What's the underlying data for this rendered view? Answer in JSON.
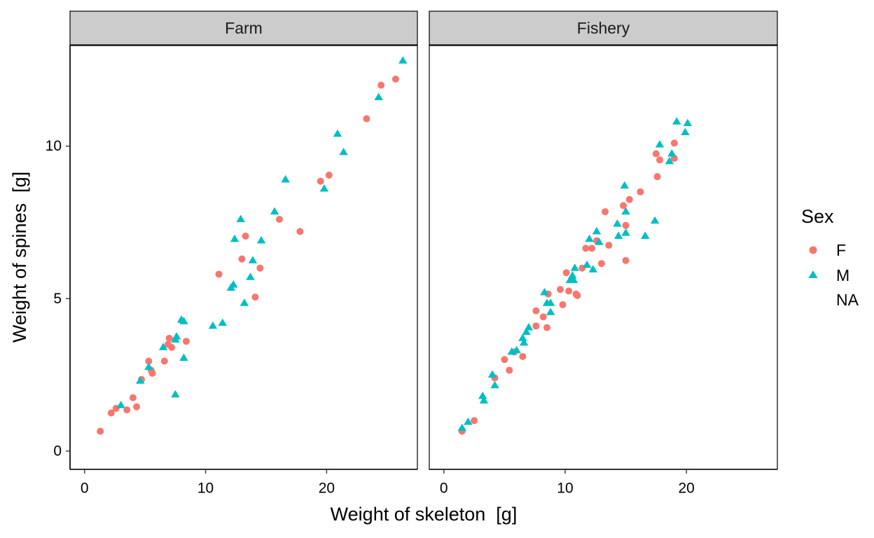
{
  "chart_data": {
    "type": "scatter",
    "facets": [
      "Farm",
      "Fishery"
    ],
    "xlabel": "Weight of skeleton  [g]",
    "ylabel": "Weight of spines  [g]",
    "xlim": [
      -1.2,
      27.5
    ],
    "ylim": [
      -0.6,
      13.3
    ],
    "xticks": [
      0,
      10,
      20
    ],
    "yticks": [
      0,
      5,
      10
    ],
    "legend": {
      "title": "Sex",
      "position": "right",
      "entries": [
        "F",
        "M",
        "NA"
      ]
    },
    "colors": {
      "F": "#F8766D",
      "M": "#00BFC4"
    },
    "series": [
      {
        "name": "F",
        "marker": "circle",
        "facet_points": {
          "Farm": [
            [
              1.3,
              0.65
            ],
            [
              2.2,
              1.25
            ],
            [
              2.6,
              1.4
            ],
            [
              3.5,
              1.35
            ],
            [
              4.0,
              1.75
            ],
            [
              4.3,
              1.45
            ],
            [
              4.7,
              2.35
            ],
            [
              5.3,
              2.95
            ],
            [
              5.5,
              2.65
            ],
            [
              5.6,
              2.55
            ],
            [
              6.6,
              2.95
            ],
            [
              6.9,
              3.5
            ],
            [
              7.0,
              3.7
            ],
            [
              7.2,
              3.4
            ],
            [
              8.4,
              3.6
            ],
            [
              11.1,
              5.8
            ],
            [
              13.0,
              6.3
            ],
            [
              13.3,
              7.05
            ],
            [
              14.1,
              5.05
            ],
            [
              14.5,
              6.0
            ],
            [
              16.1,
              7.6
            ],
            [
              17.8,
              7.2
            ],
            [
              19.5,
              8.85
            ],
            [
              20.2,
              9.05
            ],
            [
              23.3,
              10.9
            ],
            [
              24.5,
              12.0
            ],
            [
              25.7,
              12.2
            ]
          ],
          "Fishery": [
            [
              1.5,
              0.65
            ],
            [
              2.5,
              1.0
            ],
            [
              4.2,
              2.4
            ],
            [
              5.0,
              3.0
            ],
            [
              5.4,
              2.65
            ],
            [
              5.8,
              3.25
            ],
            [
              6.5,
              3.1
            ],
            [
              7.6,
              4.1
            ],
            [
              7.6,
              4.6
            ],
            [
              8.2,
              4.4
            ],
            [
              8.5,
              4.05
            ],
            [
              8.6,
              5.15
            ],
            [
              9.6,
              5.3
            ],
            [
              9.8,
              4.8
            ],
            [
              10.1,
              5.85
            ],
            [
              10.3,
              5.25
            ],
            [
              10.9,
              5.15
            ],
            [
              11.0,
              5.1
            ],
            [
              11.4,
              6.0
            ],
            [
              11.7,
              6.65
            ],
            [
              12.2,
              6.65
            ],
            [
              12.6,
              6.9
            ],
            [
              13.0,
              6.15
            ],
            [
              13.3,
              7.85
            ],
            [
              13.6,
              6.75
            ],
            [
              14.8,
              8.05
            ],
            [
              15.0,
              7.4
            ],
            [
              15.0,
              6.25
            ],
            [
              15.3,
              8.25
            ],
            [
              16.2,
              8.5
            ],
            [
              17.5,
              9.75
            ],
            [
              17.6,
              9.0
            ],
            [
              17.8,
              9.55
            ],
            [
              19.0,
              10.1
            ],
            [
              19.0,
              9.6
            ]
          ]
        }
      },
      {
        "name": "M",
        "marker": "triangle",
        "facet_points": {
          "Farm": [
            [
              3.0,
              1.5
            ],
            [
              4.6,
              2.3
            ],
            [
              5.3,
              2.75
            ],
            [
              6.5,
              3.4
            ],
            [
              7.5,
              3.65
            ],
            [
              7.5,
              1.85
            ],
            [
              7.6,
              3.75
            ],
            [
              8.0,
              4.3
            ],
            [
              8.2,
              4.25
            ],
            [
              8.2,
              3.05
            ],
            [
              10.6,
              4.1
            ],
            [
              11.4,
              4.2
            ],
            [
              12.1,
              5.35
            ],
            [
              12.3,
              5.45
            ],
            [
              12.4,
              6.95
            ],
            [
              12.9,
              7.6
            ],
            [
              13.2,
              4.85
            ],
            [
              13.7,
              5.7
            ],
            [
              13.9,
              6.25
            ],
            [
              14.6,
              6.9
            ],
            [
              15.7,
              7.85
            ],
            [
              16.6,
              8.9
            ],
            [
              19.8,
              8.6
            ],
            [
              20.9,
              10.4
            ],
            [
              21.4,
              9.8
            ],
            [
              24.3,
              11.6
            ],
            [
              26.3,
              12.8
            ]
          ],
          "Fishery": [
            [
              1.5,
              0.75
            ],
            [
              2.0,
              0.95
            ],
            [
              3.2,
              1.8
            ],
            [
              3.3,
              1.65
            ],
            [
              4.0,
              2.5
            ],
            [
              4.2,
              2.15
            ],
            [
              5.6,
              3.25
            ],
            [
              6.0,
              3.3
            ],
            [
              6.5,
              3.7
            ],
            [
              6.6,
              3.55
            ],
            [
              6.8,
              3.9
            ],
            [
              7.0,
              4.05
            ],
            [
              8.3,
              5.2
            ],
            [
              8.5,
              4.85
            ],
            [
              8.8,
              4.85
            ],
            [
              8.8,
              4.55
            ],
            [
              10.4,
              5.6
            ],
            [
              10.6,
              5.75
            ],
            [
              10.7,
              5.6
            ],
            [
              10.8,
              6.0
            ],
            [
              11.8,
              6.1
            ],
            [
              12.0,
              6.95
            ],
            [
              12.3,
              5.95
            ],
            [
              12.6,
              7.2
            ],
            [
              12.8,
              6.85
            ],
            [
              14.3,
              7.45
            ],
            [
              14.4,
              7.05
            ],
            [
              14.9,
              8.7
            ],
            [
              15.0,
              7.85
            ],
            [
              15.0,
              7.15
            ],
            [
              16.6,
              7.05
            ],
            [
              17.4,
              7.55
            ],
            [
              17.8,
              10.05
            ],
            [
              18.6,
              9.5
            ],
            [
              18.8,
              9.75
            ],
            [
              19.2,
              10.8
            ],
            [
              19.9,
              10.45
            ],
            [
              20.1,
              10.75
            ]
          ]
        }
      }
    ]
  }
}
